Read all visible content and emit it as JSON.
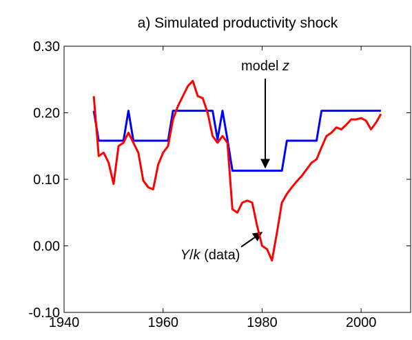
{
  "chart_data": {
    "type": "line",
    "title": "a) Simulated productivity shock",
    "x": [
      1946,
      1947,
      1948,
      1949,
      1950,
      1951,
      1952,
      1953,
      1954,
      1955,
      1956,
      1957,
      1958,
      1959,
      1960,
      1961,
      1962,
      1963,
      1964,
      1965,
      1966,
      1967,
      1968,
      1969,
      1970,
      1971,
      1972,
      1973,
      1974,
      1975,
      1976,
      1977,
      1978,
      1979,
      1980,
      1981,
      1982,
      1983,
      1984,
      1985,
      1986,
      1987,
      1988,
      1989,
      1990,
      1991,
      1992,
      1993,
      1994,
      1995,
      1996,
      1997,
      1998,
      1999,
      2000,
      2001,
      2002,
      2003,
      2004
    ],
    "series": [
      {
        "name": "model z",
        "color": "#0000ff",
        "values": [
          0.203,
          0.158,
          0.158,
          0.158,
          0.158,
          0.158,
          0.158,
          0.203,
          0.158,
          0.158,
          0.158,
          0.158,
          0.158,
          0.158,
          0.158,
          0.158,
          0.203,
          0.203,
          0.203,
          0.203,
          0.203,
          0.203,
          0.203,
          0.203,
          0.203,
          0.16,
          0.203,
          0.16,
          0.113,
          0.113,
          0.113,
          0.113,
          0.113,
          0.113,
          0.113,
          0.113,
          0.113,
          0.113,
          0.113,
          0.158,
          0.158,
          0.158,
          0.158,
          0.158,
          0.158,
          0.158,
          0.203,
          0.203,
          0.203,
          0.203,
          0.203,
          0.203,
          0.203,
          0.203,
          0.203,
          0.203,
          0.203,
          0.203,
          0.203
        ]
      },
      {
        "name": "Y/k (data)",
        "color": "#ff0000",
        "values": [
          0.225,
          0.135,
          0.14,
          0.125,
          0.093,
          0.15,
          0.155,
          0.17,
          0.155,
          0.14,
          0.098,
          0.088,
          0.085,
          0.122,
          0.14,
          0.15,
          0.19,
          0.21,
          0.225,
          0.24,
          0.248,
          0.225,
          0.222,
          0.2,
          0.165,
          0.155,
          0.165,
          0.155,
          0.055,
          0.05,
          0.065,
          0.068,
          0.065,
          0.03,
          0.0,
          -0.005,
          -0.022,
          0.02,
          0.065,
          0.078,
          0.088,
          0.097,
          0.105,
          0.115,
          0.125,
          0.13,
          0.148,
          0.165,
          0.17,
          0.178,
          0.175,
          0.182,
          0.19,
          0.19,
          0.192,
          0.188,
          0.175,
          0.185,
          0.198
        ]
      }
    ],
    "annotations": [
      {
        "parts": [
          "model ",
          "z"
        ],
        "italic": [
          false,
          true
        ]
      },
      {
        "parts": [
          "Y",
          "/",
          "k",
          " (data)"
        ],
        "italic": [
          true,
          false,
          true,
          false
        ]
      }
    ],
    "xlim": [
      1940,
      2010
    ],
    "xticks": [
      1940,
      1960,
      1980,
      2000
    ],
    "ylim": [
      -0.1,
      0.3
    ],
    "yticks": [
      {
        "value": -0.1,
        "label": "-0.10"
      },
      {
        "value": 0,
        "label": "0.00"
      },
      {
        "value": 0.1,
        "label": "0.10"
      },
      {
        "value": 0.2,
        "label": "0.20"
      },
      {
        "value": 0.3,
        "label": "0.30"
      }
    ]
  }
}
